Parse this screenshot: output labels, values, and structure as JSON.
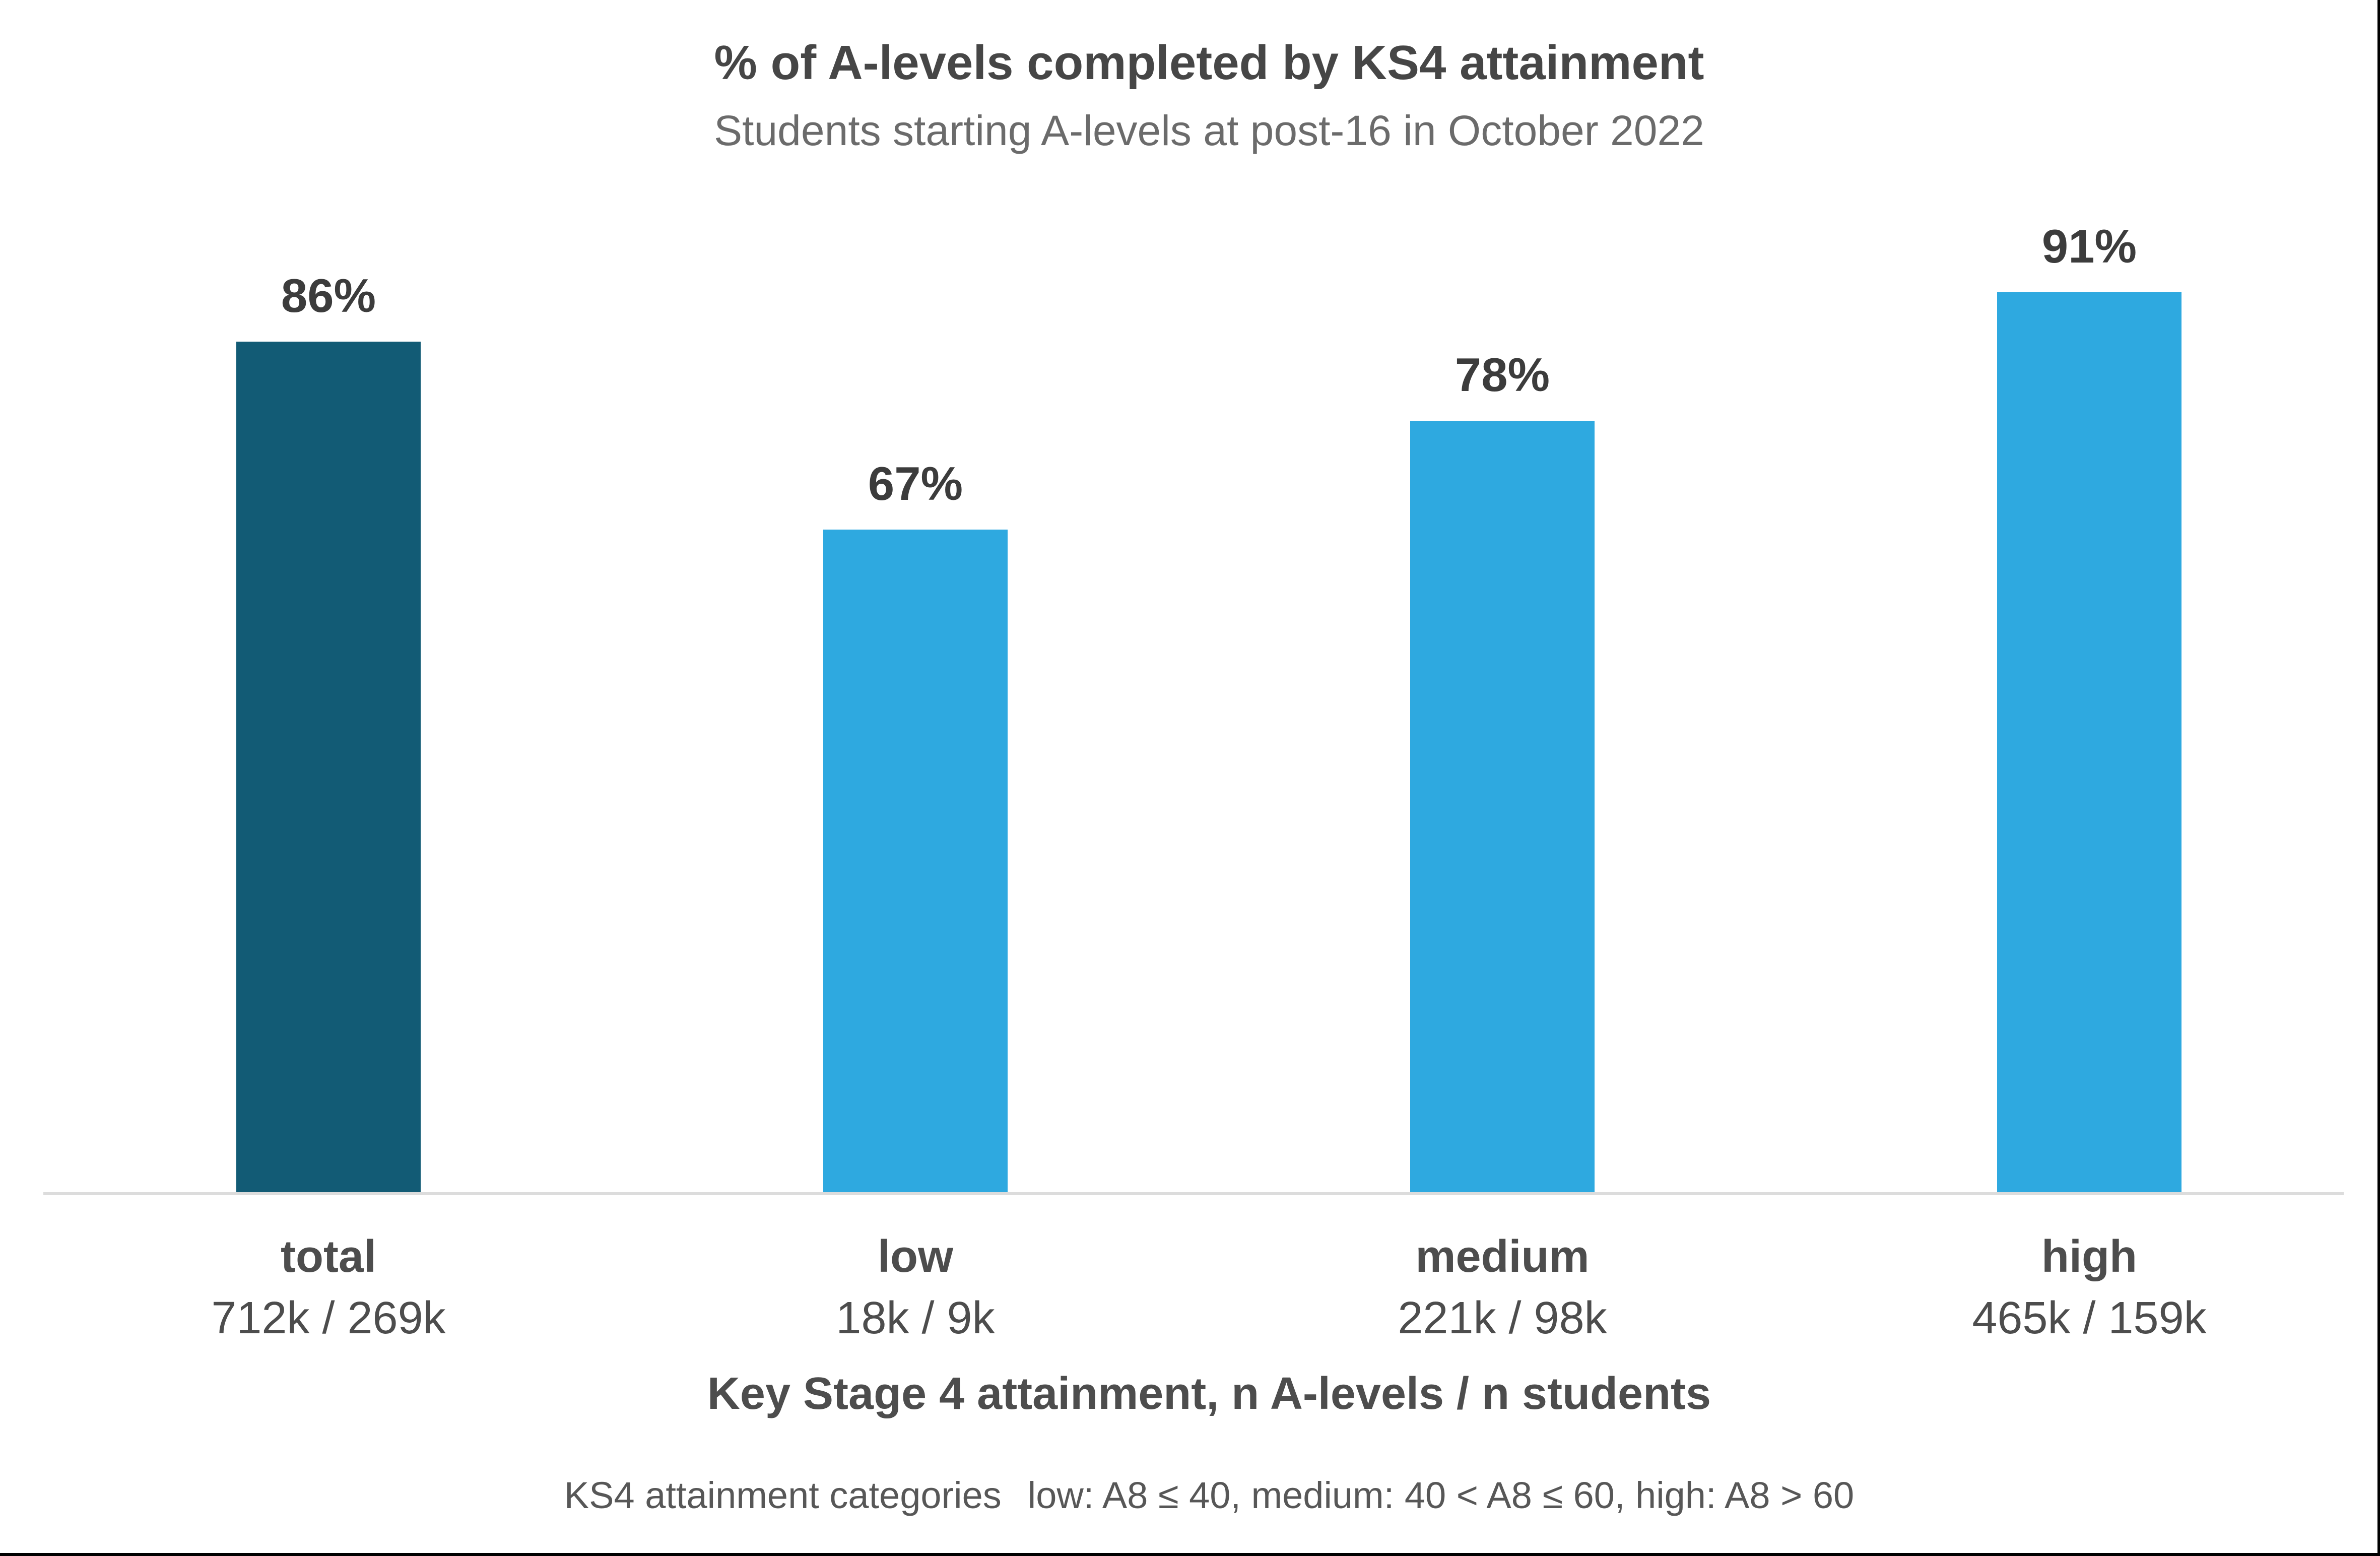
{
  "window": {
    "background": "#ffffff",
    "edge_border_color": "#000000"
  },
  "chart_data": {
    "type": "bar",
    "title": "% of A-levels completed by KS4 attainment",
    "subtitle": "Students starting A-levels at post-16 in October 2022",
    "xlabel": "Key Stage 4 attainment, n A-levels / n students",
    "footnote": {
      "label": "KS4 attainment categories",
      "detail": "low: A8 ≤ 40, medium: 40 < A8 ≤ 60, high: A8 > 60"
    },
    "categories": [
      "total",
      "low",
      "medium",
      "high"
    ],
    "values": [
      86,
      67,
      78,
      91
    ],
    "value_labels": [
      "86%",
      "67%",
      "78%",
      "91%"
    ],
    "count_labels": [
      "712k / 269k",
      "18k / 9k",
      "221k / 98k",
      "465k / 159k"
    ],
    "bar_colors": [
      "#125b75",
      "#2ea9e0",
      "#2ea9e0",
      "#2ea9e0"
    ],
    "ylim": [
      0,
      100
    ],
    "grid": false,
    "legend": "none",
    "axis_line_color": "#dcdcdc"
  }
}
